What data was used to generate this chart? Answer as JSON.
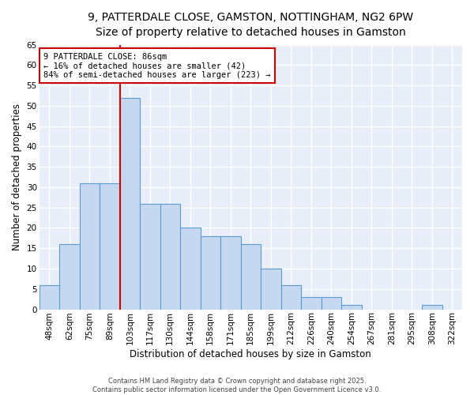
{
  "title_line1": "9, PATTERDALE CLOSE, GAMSTON, NOTTINGHAM, NG2 6PW",
  "title_line2": "Size of property relative to detached houses in Gamston",
  "xlabel": "Distribution of detached houses by size in Gamston",
  "ylabel": "Number of detached properties",
  "categories": [
    "48sqm",
    "62sqm",
    "75sqm",
    "89sqm",
    "103sqm",
    "117sqm",
    "130sqm",
    "144sqm",
    "158sqm",
    "171sqm",
    "185sqm",
    "199sqm",
    "212sqm",
    "226sqm",
    "240sqm",
    "254sqm",
    "267sqm",
    "281sqm",
    "295sqm",
    "308sqm",
    "322sqm"
  ],
  "values": [
    6,
    16,
    31,
    31,
    52,
    26,
    26,
    20,
    18,
    18,
    16,
    10,
    6,
    3,
    3,
    1,
    0,
    0,
    0,
    1,
    0
  ],
  "bar_color": "#c5d8f0",
  "bar_edge_color": "#5b9bd5",
  "bar_width": 1.0,
  "vline_x_index": 3,
  "vline_color": "#cc0000",
  "annotation_text": "9 PATTERDALE CLOSE: 86sqm\n← 16% of detached houses are smaller (42)\n84% of semi-detached houses are larger (223) →",
  "annotation_box_color": "#ffffff",
  "annotation_box_edge_color": "#cc0000",
  "annotation_fontsize": 7.5,
  "ylim": [
    0,
    65
  ],
  "yticks": [
    0,
    5,
    10,
    15,
    20,
    25,
    30,
    35,
    40,
    45,
    50,
    55,
    60,
    65
  ],
  "plot_bg_color": "#e8eef8",
  "fig_bg_color": "#ffffff",
  "grid_color": "#ffffff",
  "title_fontsize": 10,
  "subtitle_fontsize": 9,
  "axis_label_fontsize": 8.5,
  "tick_fontsize": 7.5,
  "footer_text": "Contains HM Land Registry data © Crown copyright and database right 2025.\nContains public sector information licensed under the Open Government Licence v3.0."
}
